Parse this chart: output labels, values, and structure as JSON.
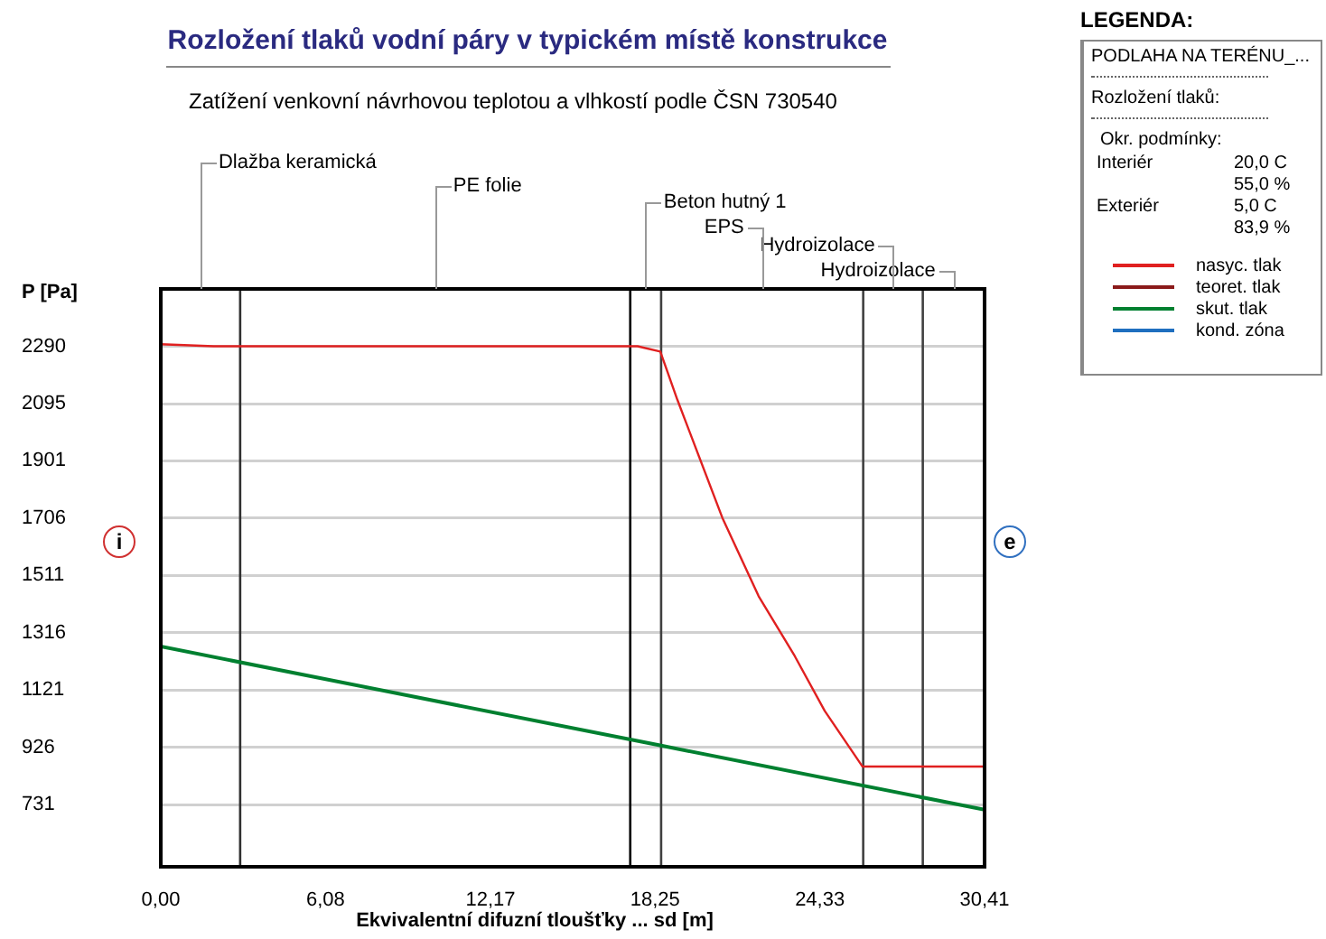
{
  "chart_data": {
    "type": "line",
    "title": "Rozložení tlaků vodní páry v typickém místě konstrukce",
    "subtitle": "Zatížení venkovní návrhovou teplotou a vlhkostí podle ČSN 730540",
    "xlabel": "Ekvivalentní difuzní tloušťky ... sd [m]",
    "ylabel": "P [Pa]",
    "legend_title": "LEGENDA:",
    "series": [
      {
        "name": "nasyc. tlak",
        "color": "#e02020",
        "x": [
          0,
          1.95,
          17.6,
          18.44,
          19.07,
          20.73,
          22.07,
          23.4,
          24.51,
          25.9,
          30.41
        ],
        "values": [
          2297,
          2290,
          2290,
          2272,
          2108,
          1707,
          1440,
          1237,
          1050,
          861,
          861
        ]
      },
      {
        "name": "teoret. tlak",
        "color": "#8b1a1a"
      },
      {
        "name": "skut. tlak",
        "color": "#008030",
        "x": [
          0,
          18.47,
          30.41
        ],
        "values": [
          1269,
          932,
          714
        ]
      },
      {
        "name": "kond. zóna",
        "color": "#1f6fbf"
      }
    ],
    "xlim": [
      0,
      30.41
    ],
    "ylim": [
      520,
      2485
    ],
    "xticks": [
      {
        "value": 0,
        "label": "0,00"
      },
      {
        "value": 6.08,
        "label": "6,08"
      },
      {
        "value": 12.17,
        "label": "12,17"
      },
      {
        "value": 18.25,
        "label": "18,25"
      },
      {
        "value": 24.33,
        "label": "24,33"
      },
      {
        "value": 30.41,
        "label": "30,41"
      }
    ],
    "yticks": [
      731,
      926,
      1121,
      1316,
      1511,
      1706,
      1901,
      2095,
      2290
    ],
    "grid": "y",
    "legend": "right",
    "line_style": "solid",
    "marker": "none",
    "ref_lines": [
      {
        "axis": "x",
        "value": 2.93,
        "color": "#303030"
      },
      {
        "axis": "x",
        "value": 17.33,
        "color": "#000000"
      },
      {
        "axis": "x",
        "value": 18.47,
        "color": "#404040"
      },
      {
        "axis": "x",
        "value": 25.93,
        "color": "#404040"
      },
      {
        "axis": "x",
        "value": 28.13,
        "color": "#404040"
      }
    ],
    "annotations": [
      "Dlažba keramická",
      "PE folie",
      "Beton hutný 1",
      "EPS",
      "Hydroizolace",
      "Hydroizolace",
      "PODLAHA NA TERÉNU_...",
      "Rozložení tlaků:",
      "Okr. podmínky:",
      "Interiér",
      "20,0 C",
      "55,0 %",
      "Exteriér",
      "5,0 C",
      "83,9 %",
      "i",
      "e"
    ]
  }
}
